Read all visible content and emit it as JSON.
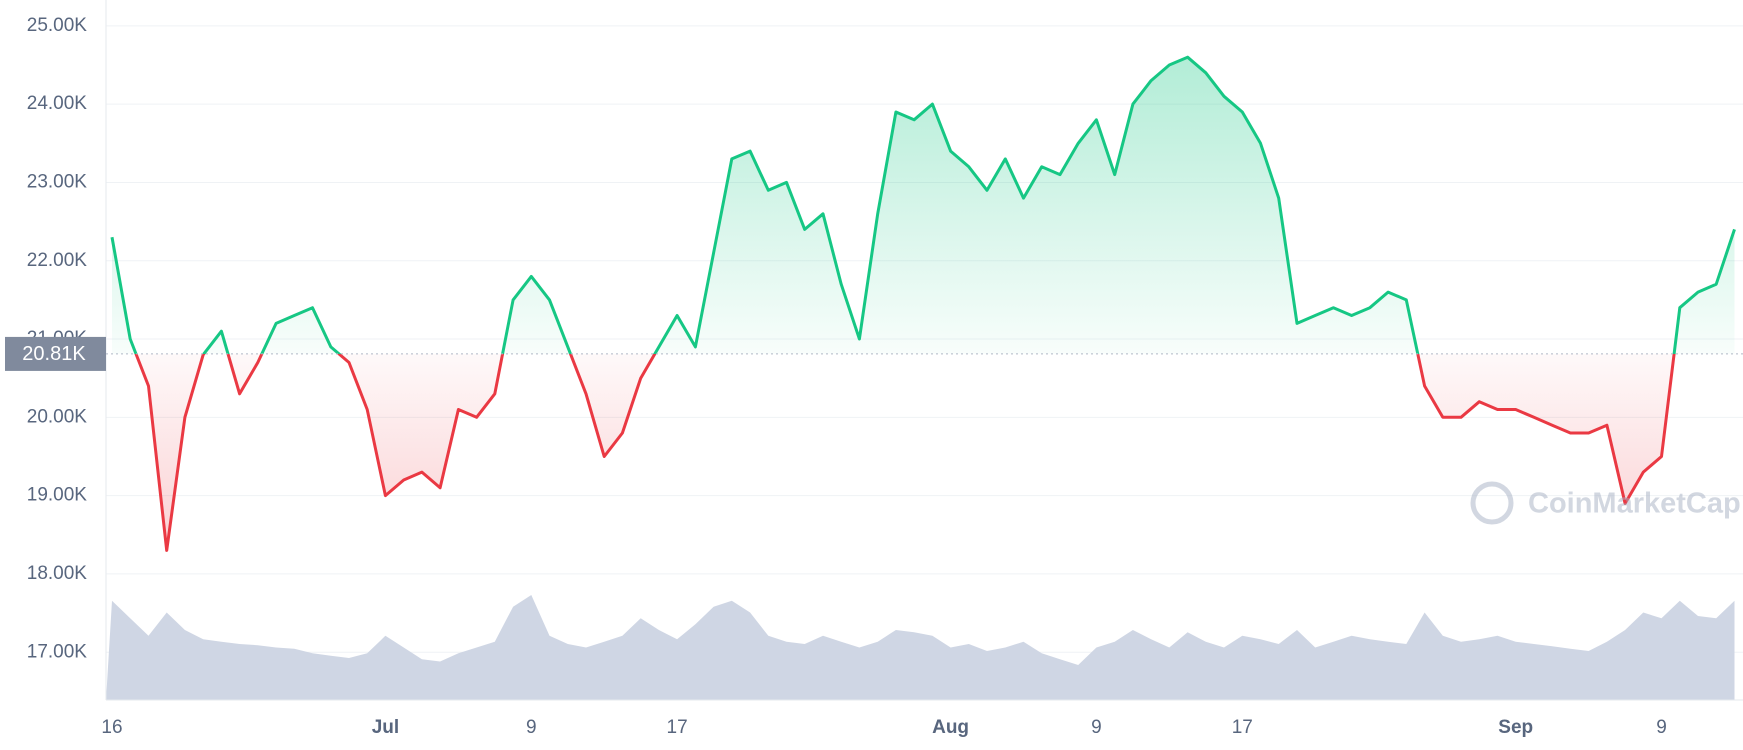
{
  "chart_data": {
    "type": "line",
    "categories": [
      "16",
      null,
      null,
      null,
      null,
      null,
      null,
      null,
      null,
      null,
      null,
      null,
      null,
      null,
      null,
      "Jul",
      null,
      null,
      null,
      null,
      null,
      null,
      null,
      "9",
      null,
      null,
      null,
      null,
      null,
      null,
      null,
      "17",
      null,
      null,
      null,
      null,
      null,
      null,
      null,
      null,
      null,
      null,
      null,
      null,
      null,
      null,
      "Aug",
      null,
      null,
      null,
      null,
      null,
      null,
      null,
      "9",
      null,
      null,
      null,
      null,
      null,
      null,
      null,
      "17",
      null,
      null,
      null,
      null,
      null,
      null,
      null,
      null,
      null,
      null,
      null,
      null,
      null,
      null,
      "Sep",
      null,
      null,
      null,
      null,
      null,
      null,
      null,
      "9",
      null,
      null,
      null,
      null
    ],
    "values": [
      22300,
      21000,
      20400,
      18300,
      20000,
      20800,
      21100,
      20300,
      20700,
      21200,
      21300,
      21400,
      20900,
      20700,
      20100,
      19000,
      19200,
      19300,
      19100,
      20100,
      20000,
      20300,
      21500,
      21800,
      21500,
      20900,
      20300,
      19500,
      19800,
      20500,
      20900,
      21300,
      20900,
      22100,
      23300,
      23400,
      22900,
      23000,
      22400,
      22600,
      21700,
      21000,
      22600,
      23900,
      23800,
      24000,
      23400,
      23200,
      22900,
      23300,
      22800,
      23200,
      23100,
      23500,
      23800,
      23100,
      24000,
      24300,
      24500,
      24600,
      24400,
      24100,
      23900,
      23500,
      22800,
      21200,
      21300,
      21400,
      21300,
      21400,
      21600,
      21500,
      20400,
      20000,
      20000,
      20200,
      20100,
      20100,
      20000,
      19900,
      19800,
      19800,
      19900,
      18900,
      19300,
      19500,
      21400,
      21600,
      21700,
      22400
    ],
    "volume": [
      85,
      70,
      55,
      75,
      60,
      52,
      50,
      48,
      47,
      45,
      44,
      40,
      38,
      36,
      40,
      55,
      45,
      35,
      33,
      40,
      45,
      50,
      80,
      90,
      55,
      48,
      45,
      50,
      55,
      70,
      60,
      52,
      65,
      80,
      85,
      75,
      55,
      50,
      48,
      55,
      50,
      45,
      50,
      60,
      58,
      55,
      45,
      48,
      42,
      45,
      50,
      40,
      35,
      30,
      45,
      50,
      60,
      52,
      45,
      58,
      50,
      45,
      55,
      52,
      48,
      60,
      45,
      50,
      55,
      52,
      50,
      48,
      75,
      55,
      50,
      52,
      55,
      50,
      48,
      46,
      44,
      42,
      50,
      60,
      75,
      70,
      85,
      72,
      70,
      85
    ],
    "reference": {
      "value": 20810,
      "label": "20.81K"
    },
    "color_up": "#16c784",
    "color_down": "#ea3943",
    "volume_color": "#cfd6e4",
    "ylim": [
      16390,
      25330
    ],
    "yticks": [
      {
        "value": 17000,
        "label": "17.00K"
      },
      {
        "value": 18000,
        "label": "18.00K"
      },
      {
        "value": 19000,
        "label": "19.00K"
      },
      {
        "value": 20000,
        "label": "20.00K"
      },
      {
        "value": 21000,
        "label": "21.00K"
      },
      {
        "value": 22000,
        "label": "22.00K"
      },
      {
        "value": 23000,
        "label": "23.00K"
      },
      {
        "value": 24000,
        "label": "24.00K"
      },
      {
        "value": 25000,
        "label": "25.00K"
      }
    ],
    "grid": true,
    "watermark": "CoinMarketCap"
  }
}
